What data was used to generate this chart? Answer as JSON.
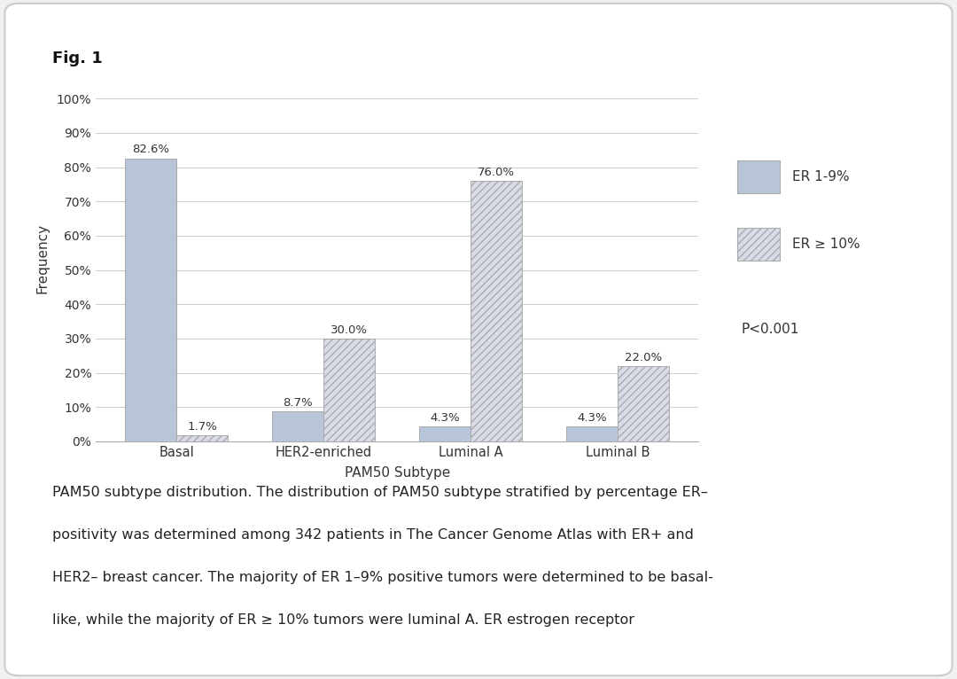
{
  "title": "Fig. 1",
  "categories": [
    "Basal",
    "HER2-enriched",
    "Luminal A",
    "Luminal B"
  ],
  "er_low_values": [
    82.6,
    8.7,
    4.3,
    4.3
  ],
  "er_high_values": [
    1.7,
    30.0,
    76.0,
    22.0
  ],
  "er_low_label": "ER 1-9%",
  "er_high_label": "ER ≥ 10%",
  "xlabel": "PAM50 Subtype",
  "ylabel": "Frequency",
  "yticks": [
    0,
    10,
    20,
    30,
    40,
    50,
    60,
    70,
    80,
    90,
    100
  ],
  "ytick_labels": [
    "0%",
    "10%",
    "20%",
    "30%",
    "40%",
    "50%",
    "60%",
    "70%",
    "80%",
    "90%",
    "100%"
  ],
  "er_low_color": "#b8c4d8",
  "er_high_color": "#d8dce8",
  "pvalue_text": "P<0.001",
  "bar_width": 0.35,
  "caption_lines": [
    "PAM50 subtype distribution. The distribution of PAM50 subtype stratified by percentage ER–",
    "positivity was determined among 342 patients in The Cancer Genome Atlas with ER+ and",
    "HER2– breast cancer. The majority of ER 1–9% positive tumors were determined to be basal-",
    "like, while the majority of ER ≥ 10% tumors were luminal A. ER estrogen receptor"
  ],
  "card_bg": "#ffffff",
  "card_edge": "#cccccc",
  "fig_bg": "#f0f0f0",
  "grid_color": "#cccccc",
  "hatch_pattern": "////",
  "spine_color": "#aaaaaa",
  "label_color": "#333333",
  "value_label_color": "#333333",
  "pvalue_color": "#333333",
  "caption_color": "#222222"
}
